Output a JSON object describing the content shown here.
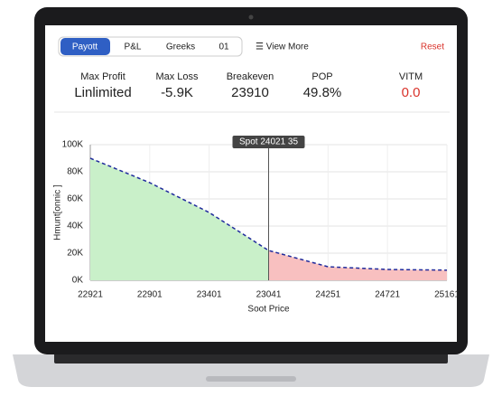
{
  "tabs": [
    "Payott",
    "P&L",
    "Greeks",
    "01"
  ],
  "view_more": "☰ View More",
  "reset": "Reset",
  "stats": [
    {
      "label": "Max Profit",
      "value": "Linlimited"
    },
    {
      "label": "Max Loss",
      "value": "-5.9K"
    },
    {
      "label": "Breakeven",
      "value": "23910"
    },
    {
      "label": "POP",
      "value": "49.8%"
    },
    {
      "label": "VITM",
      "value": "0.0"
    }
  ],
  "chart_data": {
    "type": "line",
    "annotation": "Spot  24021 35",
    "y_label": "Hmunt[onnic ]",
    "x_label": "Soot Price",
    "categories": [
      "22921",
      "22901",
      "23401",
      "23041",
      "24251",
      "24721",
      "25161"
    ],
    "series": [
      {
        "color": "#1f2a9c",
        "values": [
          90,
          72,
          50,
          22,
          10,
          8,
          7.5
        ]
      }
    ],
    "profit_color": "#c9f0c9",
    "loss_color": "#f8c0c0",
    "ylim": [
      0,
      100
    ],
    "yticks": [
      {
        "value": 0,
        "label": "0K"
      },
      {
        "value": 20,
        "label": "20K"
      },
      {
        "value": 40,
        "label": "40K"
      },
      {
        "value": 60,
        "label": "60K"
      },
      {
        "value": 80,
        "label": "80K"
      },
      {
        "value": 100,
        "label": "100K"
      }
    ],
    "grid": true
  }
}
